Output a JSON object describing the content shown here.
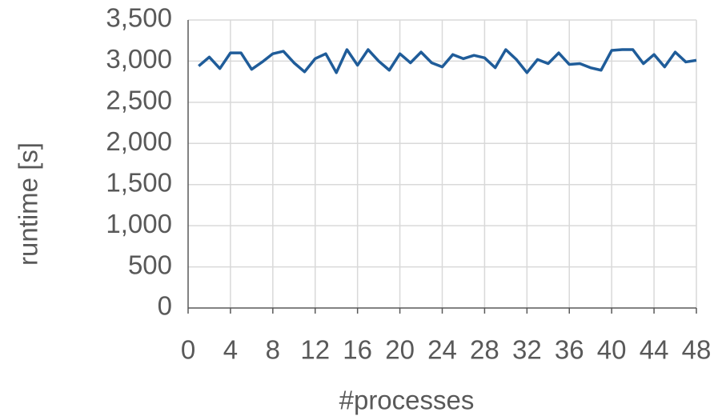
{
  "chart_data": {
    "type": "line",
    "x_label": "#processes",
    "y_label": "runtime [s]",
    "x": [
      1,
      2,
      3,
      4,
      5,
      6,
      7,
      8,
      9,
      10,
      11,
      12,
      13,
      14,
      15,
      16,
      17,
      18,
      19,
      20,
      21,
      22,
      23,
      24,
      25,
      26,
      27,
      28,
      29,
      30,
      31,
      32,
      33,
      34,
      35,
      36,
      37,
      38,
      39,
      40,
      41,
      42,
      43,
      44,
      45,
      46,
      47,
      48
    ],
    "series": [
      {
        "name": "runtime",
        "color": "#1f5c99",
        "values": [
          2940,
          3050,
          2910,
          3100,
          3100,
          2900,
          2990,
          3090,
          3120,
          2980,
          2870,
          3030,
          3090,
          2860,
          3140,
          2950,
          3140,
          3000,
          2890,
          3090,
          2980,
          3110,
          2980,
          2930,
          3080,
          3030,
          3070,
          3040,
          2920,
          3140,
          3020,
          2860,
          3020,
          2970,
          3100,
          2960,
          2970,
          2920,
          2890,
          3130,
          3140,
          3140,
          2970,
          3080,
          2930,
          3110,
          2990,
          3010
        ]
      }
    ],
    "xlim": [
      0,
      48
    ],
    "xticks": [
      0,
      4,
      8,
      12,
      16,
      20,
      24,
      28,
      32,
      36,
      40,
      44,
      48
    ],
    "ylim": [
      0,
      3500
    ],
    "yticks": [
      0,
      500,
      {
        "value": 1000,
        "label": "1,000"
      },
      {
        "value": 1500,
        "label": "1,500"
      },
      {
        "value": 2000,
        "label": "2,000"
      },
      {
        "value": 2500,
        "label": "2,500"
      },
      {
        "value": 3000,
        "label": "3,000"
      },
      {
        "value": 3500,
        "label": "3,500"
      }
    ],
    "grid": true
  }
}
